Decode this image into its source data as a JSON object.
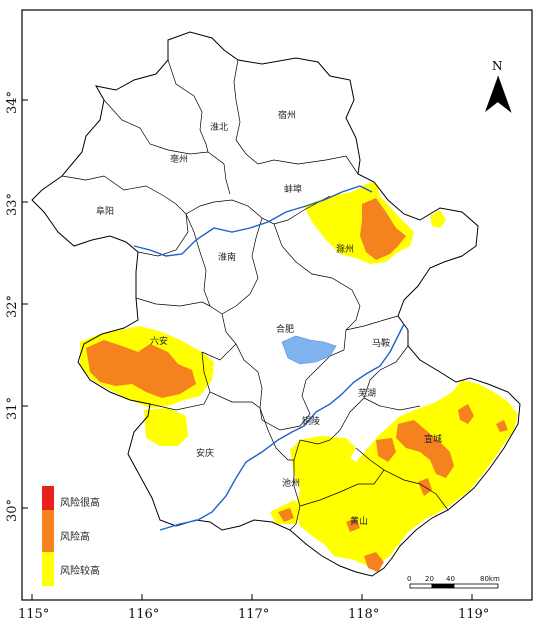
{
  "map": {
    "lon_ticks": [
      "115°",
      "116°",
      "117°",
      "118°",
      "119°"
    ],
    "lat_ticks": [
      "34°",
      "33°",
      "32°",
      "31°",
      "30°"
    ],
    "north_label": "N",
    "cities": [
      {
        "name": "宿州"
      },
      {
        "name": "淮北"
      },
      {
        "name": "亳州"
      },
      {
        "name": "阜阳"
      },
      {
        "name": "蚌埠"
      },
      {
        "name": "淮南"
      },
      {
        "name": "滁州"
      },
      {
        "name": "六安"
      },
      {
        "name": "合肥"
      },
      {
        "name": "马鞍"
      },
      {
        "name": "芜湖"
      },
      {
        "name": "铜陵"
      },
      {
        "name": "宣城"
      },
      {
        "name": "安庆"
      },
      {
        "name": "池州"
      },
      {
        "name": "黄山"
      }
    ],
    "legend": [
      {
        "label": "风险很高",
        "color": "#e8211b"
      },
      {
        "label": "风险高",
        "color": "#f5821f"
      },
      {
        "label": "风险较高",
        "color": "#ffff00"
      }
    ],
    "scale_bar": {
      "labels": [
        "0",
        "20",
        "40",
        "80km"
      ]
    },
    "colors": {
      "water": "#1f5fd1",
      "lake": "#7fb3f0",
      "boundary": "#000000"
    }
  }
}
